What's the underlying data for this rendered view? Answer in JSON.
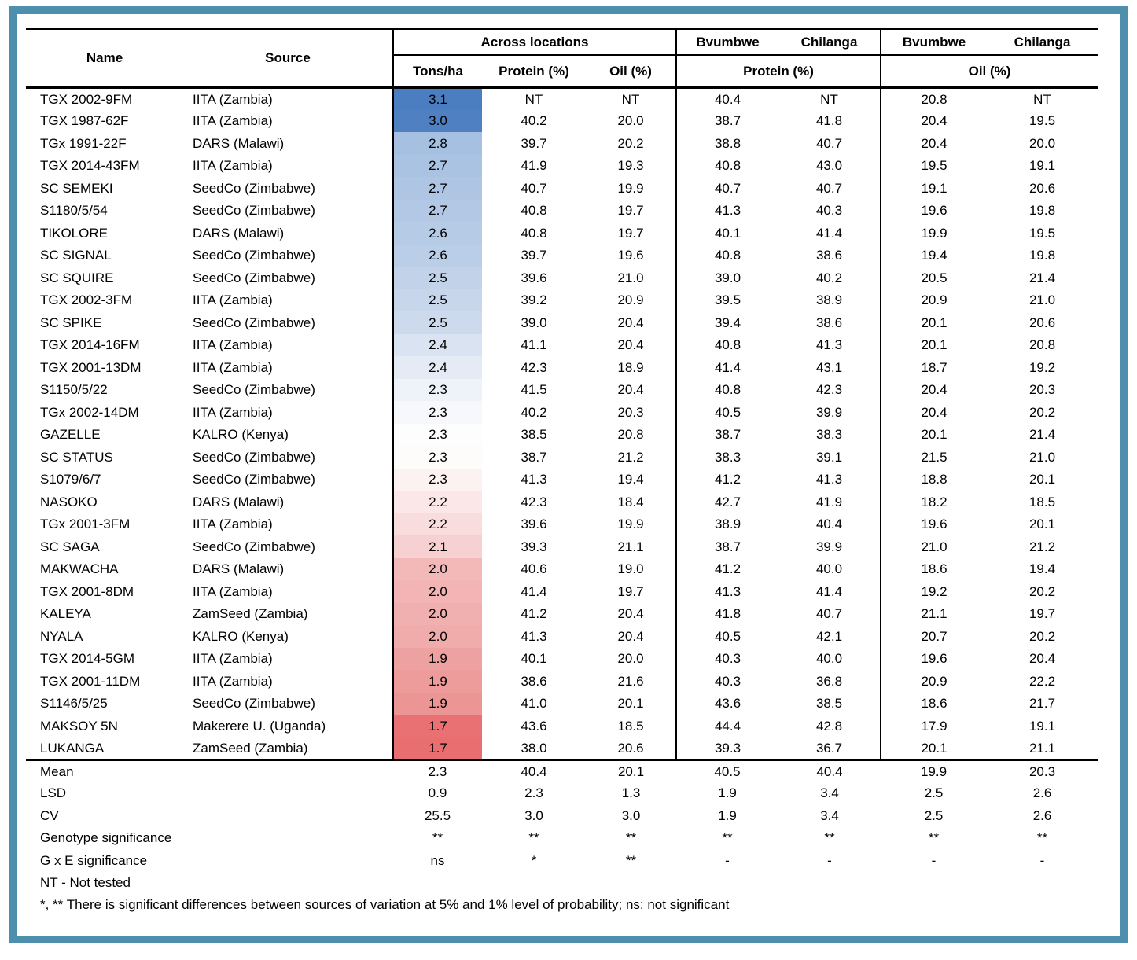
{
  "frame_color": "#4d8fac",
  "table": {
    "headers": {
      "name": "Name",
      "source": "Source",
      "across": "Across locations",
      "tons": "Tons/ha",
      "protein": "Protein (%)",
      "oil": "Oil (%)",
      "bvumbwe": "Bvumbwe",
      "chilanga": "Chilanga"
    },
    "heat_scale": {
      "high_color": "#4b7ec1",
      "mid_color": "#fdfdfe",
      "low_color": "#e96e70"
    },
    "rows": [
      {
        "name": "TGX 2002-9FM",
        "source": "IITA (Zambia)",
        "tons": "3.1",
        "tons_color": "#4b7ec1",
        "protein": "NT",
        "oil": "NT",
        "bv_protein": "40.4",
        "ch_protein": "NT",
        "bv_oil": "20.8",
        "ch_oil": "NT"
      },
      {
        "name": "TGX 1987-62F",
        "source": "IITA (Zambia)",
        "tons": "3.0",
        "tons_color": "#4e80c2",
        "protein": "40.2",
        "oil": "20.0",
        "bv_protein": "38.7",
        "ch_protein": "41.8",
        "bv_oil": "20.4",
        "ch_oil": "19.5"
      },
      {
        "name": "TGx 1991-22F",
        "source": "DARS (Malawi)",
        "tons": "2.8",
        "tons_color": "#a5c0e1",
        "protein": "39.7",
        "oil": "20.2",
        "bv_protein": "38.8",
        "ch_protein": "40.7",
        "bv_oil": "20.4",
        "ch_oil": "20.0"
      },
      {
        "name": "TGX 2014-43FM",
        "source": "IITA (Zambia)",
        "tons": "2.7",
        "tons_color": "#aac3e2",
        "protein": "41.9",
        "oil": "19.3",
        "bv_protein": "40.8",
        "ch_protein": "43.0",
        "bv_oil": "19.5",
        "ch_oil": "19.1"
      },
      {
        "name": "SC SEMEKI",
        "source": "SeedCo (Zimbabwe)",
        "tons": "2.7",
        "tons_color": "#aec6e4",
        "protein": "40.7",
        "oil": "19.9",
        "bv_protein": "40.7",
        "ch_protein": "40.7",
        "bv_oil": "19.1",
        "ch_oil": "20.6"
      },
      {
        "name": "S1180/5/54",
        "source": "SeedCo (Zimbabwe)",
        "tons": "2.7",
        "tons_color": "#b2c8e5",
        "protein": "40.8",
        "oil": "19.7",
        "bv_protein": "41.3",
        "ch_protein": "40.3",
        "bv_oil": "19.6",
        "ch_oil": "19.8"
      },
      {
        "name": "TIKOLORE",
        "source": "DARS (Malawi)",
        "tons": "2.6",
        "tons_color": "#b6cbe6",
        "protein": "40.8",
        "oil": "19.7",
        "bv_protein": "40.1",
        "ch_protein": "41.4",
        "bv_oil": "19.9",
        "ch_oil": "19.5"
      },
      {
        "name": "SC SIGNAL",
        "source": "SeedCo (Zimbabwe)",
        "tons": "2.6",
        "tons_color": "#bbcee8",
        "protein": "39.7",
        "oil": "19.6",
        "bv_protein": "40.8",
        "ch_protein": "38.6",
        "bv_oil": "19.4",
        "ch_oil": "19.8"
      },
      {
        "name": "SC SQUIRE",
        "source": "SeedCo (Zimbabwe)",
        "tons": "2.5",
        "tons_color": "#c1d2e9",
        "protein": "39.6",
        "oil": "21.0",
        "bv_protein": "39.0",
        "ch_protein": "40.2",
        "bv_oil": "20.5",
        "ch_oil": "21.4"
      },
      {
        "name": "TGX 2002-3FM",
        "source": "IITA (Zambia)",
        "tons": "2.5",
        "tons_color": "#c7d6eb",
        "protein": "39.2",
        "oil": "20.9",
        "bv_protein": "39.5",
        "ch_protein": "38.9",
        "bv_oil": "20.9",
        "ch_oil": "21.0"
      },
      {
        "name": "SC SPIKE",
        "source": "SeedCo (Zimbabwe)",
        "tons": "2.5",
        "tons_color": "#cdd9ed",
        "protein": "39.0",
        "oil": "20.4",
        "bv_protein": "39.4",
        "ch_protein": "38.6",
        "bv_oil": "20.1",
        "ch_oil": "20.6"
      },
      {
        "name": "TGX 2014-16FM",
        "source": "IITA (Zambia)",
        "tons": "2.4",
        "tons_color": "#d9e3f1",
        "protein": "41.1",
        "oil": "20.4",
        "bv_protein": "40.8",
        "ch_protein": "41.3",
        "bv_oil": "20.1",
        "ch_oil": "20.8"
      },
      {
        "name": "TGX 2001-13DM",
        "source": "IITA (Zambia)",
        "tons": "2.4",
        "tons_color": "#e4ebf5",
        "protein": "42.3",
        "oil": "18.9",
        "bv_protein": "41.4",
        "ch_protein": "43.1",
        "bv_oil": "18.7",
        "ch_oil": "19.2"
      },
      {
        "name": "S1150/5/22",
        "source": "SeedCo (Zimbabwe)",
        "tons": "2.3",
        "tons_color": "#eef3f9",
        "protein": "41.5",
        "oil": "20.4",
        "bv_protein": "40.8",
        "ch_protein": "42.3",
        "bv_oil": "20.4",
        "ch_oil": "20.3"
      },
      {
        "name": "TGx 2002-14DM",
        "source": "IITA (Zambia)",
        "tons": "2.3",
        "tons_color": "#f6f8fc",
        "protein": "40.2",
        "oil": "20.3",
        "bv_protein": "40.5",
        "ch_protein": "39.9",
        "bv_oil": "20.4",
        "ch_oil": "20.2"
      },
      {
        "name": "GAZELLE",
        "source": "KALRO (Kenya)",
        "tons": "2.3",
        "tons_color": "#fdfdfe",
        "protein": "38.5",
        "oil": "20.8",
        "bv_protein": "38.7",
        "ch_protein": "38.3",
        "bv_oil": "20.1",
        "ch_oil": "21.4"
      },
      {
        "name": "SC STATUS",
        "source": "SeedCo (Zimbabwe)",
        "tons": "2.3",
        "tons_color": "#fefbfb",
        "protein": "38.7",
        "oil": "21.2",
        "bv_protein": "38.3",
        "ch_protein": "39.1",
        "bv_oil": "21.5",
        "ch_oil": "21.0"
      },
      {
        "name": "S1079/6/7",
        "source": "SeedCo (Zimbabwe)",
        "tons": "2.3",
        "tons_color": "#fdf2f2",
        "protein": "41.3",
        "oil": "19.4",
        "bv_protein": "41.2",
        "ch_protein": "41.3",
        "bv_oil": "18.8",
        "ch_oil": "20.1"
      },
      {
        "name": "NASOKO",
        "source": "DARS (Malawi)",
        "tons": "2.2",
        "tons_color": "#fbe7e7",
        "protein": "42.3",
        "oil": "18.4",
        "bv_protein": "42.7",
        "ch_protein": "41.9",
        "bv_oil": "18.2",
        "ch_oil": "18.5"
      },
      {
        "name": "TGx 2001-3FM",
        "source": "IITA (Zambia)",
        "tons": "2.2",
        "tons_color": "#f9dcdc",
        "protein": "39.6",
        "oil": "19.9",
        "bv_protein": "38.9",
        "ch_protein": "40.4",
        "bv_oil": "19.6",
        "ch_oil": "20.1"
      },
      {
        "name": "SC SAGA",
        "source": "SeedCo (Zimbabwe)",
        "tons": "2.1",
        "tons_color": "#f7d1d1",
        "protein": "39.3",
        "oil": "21.1",
        "bv_protein": "38.7",
        "ch_protein": "39.9",
        "bv_oil": "21.0",
        "ch_oil": "21.2"
      },
      {
        "name": "MAKWACHA",
        "source": "DARS (Malawi)",
        "tons": "2.0",
        "tons_color": "#f3b9b9",
        "protein": "40.6",
        "oil": "19.0",
        "bv_protein": "41.2",
        "ch_protein": "40.0",
        "bv_oil": "18.6",
        "ch_oil": "19.4"
      },
      {
        "name": "TGX 2001-8DM",
        "source": "IITA (Zambia)",
        "tons": "2.0",
        "tons_color": "#f2b4b4",
        "protein": "41.4",
        "oil": "19.7",
        "bv_protein": "41.3",
        "ch_protein": "41.4",
        "bv_oil": "19.2",
        "ch_oil": "20.2"
      },
      {
        "name": "KALEYA",
        "source": "ZamSeed (Zambia)",
        "tons": "2.0",
        "tons_color": "#f1b0b0",
        "protein": "41.2",
        "oil": "20.4",
        "bv_protein": "41.8",
        "ch_protein": "40.7",
        "bv_oil": "21.1",
        "ch_oil": "19.7"
      },
      {
        "name": "NYALA",
        "source": "KALRO (Kenya)",
        "tons": "2.0",
        "tons_color": "#f0abab",
        "protein": "41.3",
        "oil": "20.4",
        "bv_protein": "40.5",
        "ch_protein": "42.1",
        "bv_oil": "20.7",
        "ch_oil": "20.2"
      },
      {
        "name": "TGX 2014-5GM",
        "source": "IITA (Zambia)",
        "tons": "1.9",
        "tons_color": "#eea1a1",
        "protein": "40.1",
        "oil": "20.0",
        "bv_protein": "40.3",
        "ch_protein": "40.0",
        "bv_oil": "19.6",
        "ch_oil": "20.4"
      },
      {
        "name": "TGX 2001-11DM",
        "source": "IITA (Zambia)",
        "tons": "1.9",
        "tons_color": "#ed9b9b",
        "protein": "38.6",
        "oil": "21.6",
        "bv_protein": "40.3",
        "ch_protein": "36.8",
        "bv_oil": "20.9",
        "ch_oil": "22.2"
      },
      {
        "name": "S1146/5/25",
        "source": "SeedCo (Zimbabwe)",
        "tons": "1.9",
        "tons_color": "#ec9595",
        "protein": "41.0",
        "oil": "20.1",
        "bv_protein": "43.6",
        "ch_protein": "38.5",
        "bv_oil": "18.6",
        "ch_oil": "21.7"
      },
      {
        "name": "MAKSOY 5N",
        "source": "Makerere U. (Uganda)",
        "tons": "1.7",
        "tons_color": "#ea7173",
        "protein": "43.6",
        "oil": "18.5",
        "bv_protein": "44.4",
        "ch_protein": "42.8",
        "bv_oil": "17.9",
        "ch_oil": "19.1"
      },
      {
        "name": "LUKANGA",
        "source": "ZamSeed (Zambia)",
        "tons": "1.7",
        "tons_color": "#e96e70",
        "protein": "38.0",
        "oil": "20.6",
        "bv_protein": "39.3",
        "ch_protein": "36.7",
        "bv_oil": "20.1",
        "ch_oil": "21.1"
      }
    ],
    "summary": [
      {
        "label": "Mean",
        "values": [
          "2.3",
          "40.4",
          "20.1",
          "40.5",
          "40.4",
          "19.9",
          "20.3"
        ]
      },
      {
        "label": "LSD",
        "values": [
          "0.9",
          "2.3",
          "1.3",
          "1.9",
          "3.4",
          "2.5",
          "2.6"
        ]
      },
      {
        "label": "CV",
        "values": [
          "25.5",
          "3.0",
          "3.0",
          "1.9",
          "3.4",
          "2.5",
          "2.6"
        ]
      },
      {
        "label": "Genotype significance",
        "values": [
          "**",
          "**",
          "**",
          "**",
          "**",
          "**",
          "**"
        ]
      },
      {
        "label": "G x E significance",
        "values": [
          "ns",
          "*",
          "**",
          "-",
          "-",
          "-",
          "-"
        ]
      }
    ],
    "notes": [
      "NT - Not tested",
      "*, **   There is significant differences between sources of variation at 5% and 1% level of probability;  ns: not significant"
    ]
  }
}
